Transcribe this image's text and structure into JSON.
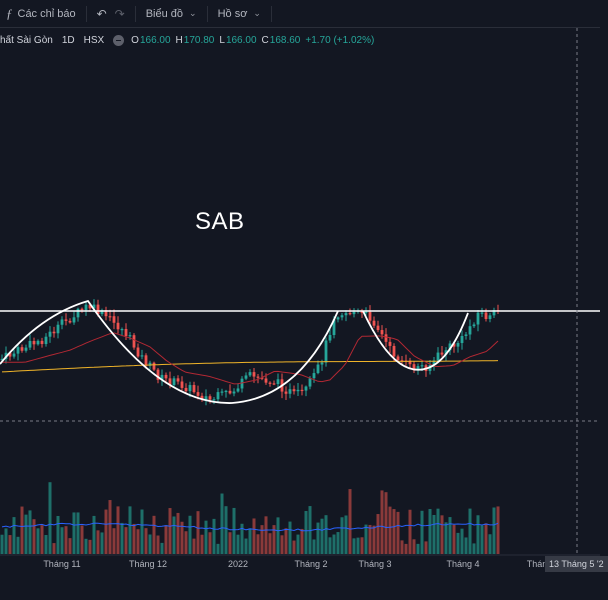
{
  "toolbar": {
    "indicators_label": "Các chỉ báo",
    "chart_label": "Biểu đồ",
    "profile_label": "Hồ sơ"
  },
  "legend": {
    "symbol": "hất Sài Gòn",
    "interval": "1D",
    "exchange": "HSX",
    "open_key": "O",
    "open": "166.00",
    "high_key": "H",
    "high": "170.80",
    "low_key": "L",
    "low": "166.00",
    "close_key": "C",
    "close": "168.60",
    "change": "+1.70 (+1.02%)"
  },
  "annotation": {
    "ticker": "SAB"
  },
  "x_axis": {
    "labels": [
      "Tháng 11",
      "Tháng 12",
      "2022",
      "Tháng 2",
      "Tháng 3",
      "Tháng 4",
      "Thán"
    ],
    "cursor_date": "13 Tháng 5 '2"
  },
  "colors": {
    "background": "#131722",
    "up": "#26a69a",
    "down": "#ef5350",
    "ma_slow": "#f0b429",
    "ma_fast": "#b22833",
    "volume_ma": "#2962ff",
    "pattern_lines": "#ffffff"
  },
  "chart_data": {
    "type": "candlestick",
    "price": {
      "last_open": 166.0,
      "last_high": 170.8,
      "last_low": 166.0,
      "last_close": 168.6,
      "change": 1.7,
      "change_pct": 1.02
    },
    "series": [
      {
        "name": "price"
      },
      {
        "name": "moving-average-slow"
      },
      {
        "name": "moving-average-fast"
      },
      {
        "name": "volume"
      }
    ],
    "annotations": [
      "resistance line",
      "cup and handle pattern",
      "cursor crosshair"
    ],
    "grid": false
  }
}
